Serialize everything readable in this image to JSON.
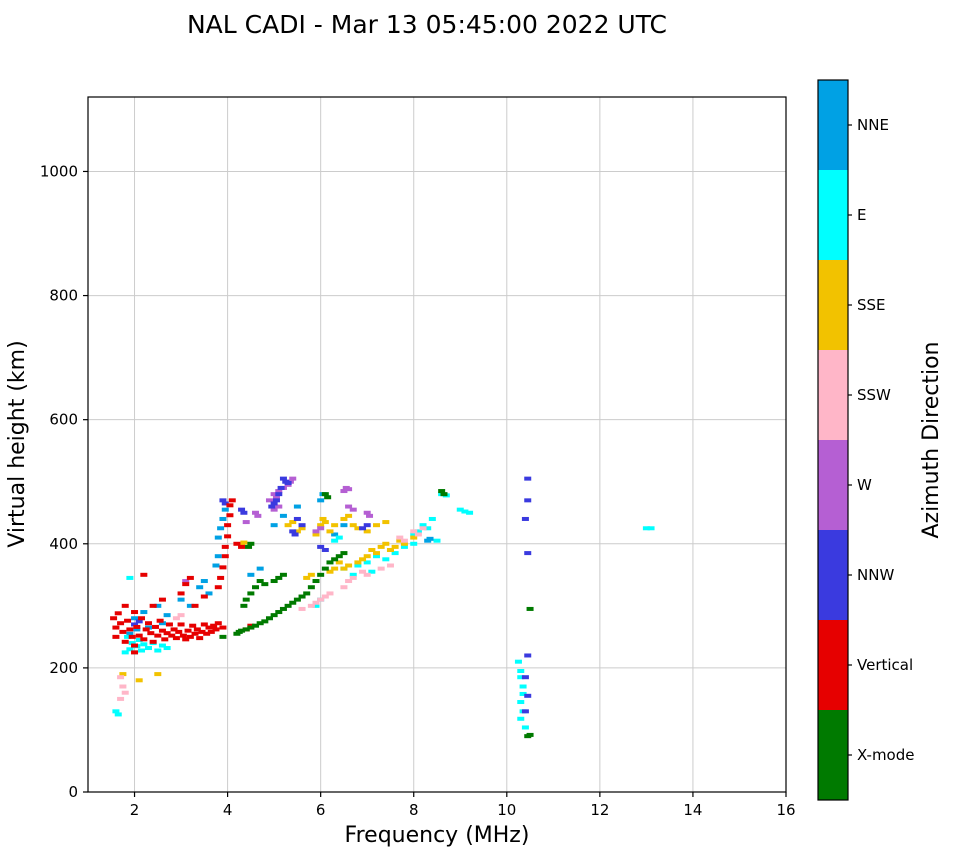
{
  "chart_data": {
    "type": "scatter",
    "title": "NAL CADI - Mar 13 05:45:00 2022 UTC",
    "xlabel": "Frequency (MHz)",
    "ylabel": "Virtual height (km)",
    "colorbar_title": "Azimuth Direction",
    "xlim": [
      1,
      16
    ],
    "ylim": [
      0,
      1120
    ],
    "xticks": [
      2,
      4,
      6,
      8,
      10,
      12,
      14,
      16
    ],
    "yticks": [
      0,
      200,
      400,
      600,
      800,
      1000
    ],
    "grid": true,
    "legend_position": "right-colorbar",
    "series": [
      {
        "name": "NNE",
        "color": "#00A1E4",
        "points": [
          [
            1.9,
            255
          ],
          [
            2.0,
            280
          ],
          [
            2.05,
            262
          ],
          [
            2.2,
            290
          ],
          [
            2.3,
            265
          ],
          [
            2.5,
            300
          ],
          [
            2.6,
            272
          ],
          [
            2.7,
            285
          ],
          [
            3.0,
            310
          ],
          [
            3.2,
            300
          ],
          [
            3.4,
            330
          ],
          [
            3.5,
            340
          ],
          [
            3.6,
            320
          ],
          [
            3.75,
            365
          ],
          [
            3.8,
            380
          ],
          [
            3.8,
            410
          ],
          [
            3.85,
            425
          ],
          [
            3.9,
            440
          ],
          [
            3.95,
            455
          ],
          [
            4.5,
            350
          ],
          [
            4.7,
            360
          ],
          [
            5.0,
            430
          ],
          [
            5.2,
            445
          ],
          [
            5.5,
            460
          ],
          [
            6.0,
            470
          ],
          [
            6.05,
            480
          ],
          [
            6.3,
            415
          ],
          [
            6.5,
            430
          ],
          [
            8.3,
            405
          ],
          [
            8.35,
            408
          ]
        ]
      },
      {
        "name": "E",
        "color": "#00FFFF",
        "points": [
          [
            1.6,
            130
          ],
          [
            1.65,
            125
          ],
          [
            1.8,
            225
          ],
          [
            1.85,
            250
          ],
          [
            1.9,
            345
          ],
          [
            1.9,
            230
          ],
          [
            1.95,
            240
          ],
          [
            2.0,
            225
          ],
          [
            2.05,
            235
          ],
          [
            2.1,
            245
          ],
          [
            2.15,
            228
          ],
          [
            2.2,
            238
          ],
          [
            2.3,
            232
          ],
          [
            2.4,
            240
          ],
          [
            2.5,
            228
          ],
          [
            2.6,
            236
          ],
          [
            2.7,
            232
          ],
          [
            5.9,
            300
          ],
          [
            6.0,
            310
          ],
          [
            6.3,
            405
          ],
          [
            6.4,
            410
          ],
          [
            6.5,
            360
          ],
          [
            6.7,
            350
          ],
          [
            6.8,
            365
          ],
          [
            7.0,
            370
          ],
          [
            7.1,
            355
          ],
          [
            7.2,
            380
          ],
          [
            7.4,
            375
          ],
          [
            7.5,
            390
          ],
          [
            7.6,
            385
          ],
          [
            7.8,
            395
          ],
          [
            8.0,
            400
          ],
          [
            8.0,
            415
          ],
          [
            8.1,
            420
          ],
          [
            8.2,
            430
          ],
          [
            8.3,
            425
          ],
          [
            8.4,
            440
          ],
          [
            8.5,
            405
          ],
          [
            8.6,
            480
          ],
          [
            8.7,
            478
          ],
          [
            9.0,
            455
          ],
          [
            9.1,
            452
          ],
          [
            9.2,
            450
          ],
          [
            10.25,
            210
          ],
          [
            10.3,
            195
          ],
          [
            10.3,
            185
          ],
          [
            10.35,
            170
          ],
          [
            10.35,
            158
          ],
          [
            10.3,
            145
          ],
          [
            10.35,
            130
          ],
          [
            10.3,
            118
          ],
          [
            10.4,
            104
          ],
          [
            13.0,
            425
          ],
          [
            13.1,
            425
          ]
        ]
      },
      {
        "name": "SSE",
        "color": "#F2C200",
        "points": [
          [
            1.75,
            190
          ],
          [
            2.1,
            180
          ],
          [
            2.5,
            190
          ],
          [
            4.3,
            398
          ],
          [
            4.35,
            402
          ],
          [
            5.3,
            430
          ],
          [
            5.4,
            435
          ],
          [
            5.5,
            420
          ],
          [
            5.6,
            425
          ],
          [
            5.7,
            345
          ],
          [
            5.8,
            350
          ],
          [
            5.9,
            415
          ],
          [
            6.0,
            430
          ],
          [
            6.05,
            440
          ],
          [
            6.1,
            435
          ],
          [
            6.2,
            420
          ],
          [
            6.2,
            355
          ],
          [
            6.3,
            430
          ],
          [
            6.3,
            360
          ],
          [
            6.4,
            370
          ],
          [
            6.5,
            440
          ],
          [
            6.5,
            360
          ],
          [
            6.6,
            445
          ],
          [
            6.6,
            365
          ],
          [
            6.7,
            430
          ],
          [
            6.8,
            425
          ],
          [
            6.8,
            370
          ],
          [
            6.9,
            375
          ],
          [
            7.0,
            420
          ],
          [
            7.0,
            380
          ],
          [
            7.1,
            390
          ],
          [
            7.2,
            430
          ],
          [
            7.2,
            385
          ],
          [
            7.3,
            395
          ],
          [
            7.4,
            435
          ],
          [
            7.4,
            400
          ],
          [
            7.5,
            390
          ],
          [
            7.6,
            395
          ],
          [
            7.7,
            405
          ],
          [
            7.8,
            400
          ],
          [
            8.0,
            410
          ]
        ]
      },
      {
        "name": "SSW",
        "color": "#FFB6C8",
        "points": [
          [
            1.7,
            185
          ],
          [
            1.7,
            150
          ],
          [
            1.75,
            170
          ],
          [
            1.8,
            160
          ],
          [
            2.9,
            280
          ],
          [
            3.0,
            285
          ],
          [
            5.6,
            295
          ],
          [
            5.8,
            300
          ],
          [
            5.9,
            305
          ],
          [
            6.0,
            310
          ],
          [
            6.1,
            315
          ],
          [
            6.2,
            320
          ],
          [
            6.5,
            330
          ],
          [
            6.6,
            340
          ],
          [
            6.7,
            345
          ],
          [
            6.9,
            355
          ],
          [
            7.0,
            350
          ],
          [
            7.3,
            360
          ],
          [
            7.5,
            365
          ],
          [
            7.7,
            410
          ],
          [
            7.8,
            405
          ],
          [
            8.0,
            420
          ],
          [
            8.1,
            415
          ],
          [
            8.2,
            425
          ]
        ]
      },
      {
        "name": "W",
        "color": "#B55FD3",
        "points": [
          [
            3.1,
            340
          ],
          [
            4.4,
            435
          ],
          [
            4.6,
            450
          ],
          [
            4.65,
            445
          ],
          [
            4.9,
            470
          ],
          [
            5.0,
            480
          ],
          [
            5.0,
            455
          ],
          [
            5.05,
            475
          ],
          [
            5.1,
            485
          ],
          [
            5.1,
            460
          ],
          [
            5.2,
            490
          ],
          [
            5.3,
            495
          ],
          [
            5.35,
            500
          ],
          [
            5.4,
            505
          ],
          [
            5.9,
            420
          ],
          [
            6.0,
            425
          ],
          [
            6.5,
            485
          ],
          [
            6.55,
            490
          ],
          [
            6.6,
            488
          ],
          [
            6.6,
            460
          ],
          [
            6.7,
            455
          ],
          [
            7.0,
            450
          ],
          [
            7.05,
            445
          ]
        ]
      },
      {
        "name": "NNW",
        "color": "#3A3ADF",
        "points": [
          [
            2.0,
            270
          ],
          [
            2.1,
            275
          ],
          [
            3.9,
            470
          ],
          [
            3.95,
            465
          ],
          [
            4.3,
            455
          ],
          [
            4.35,
            450
          ],
          [
            4.95,
            460
          ],
          [
            5.0,
            465
          ],
          [
            5.05,
            470
          ],
          [
            5.1,
            480
          ],
          [
            5.15,
            490
          ],
          [
            5.2,
            505
          ],
          [
            5.25,
            500
          ],
          [
            5.3,
            498
          ],
          [
            5.4,
            420
          ],
          [
            5.45,
            415
          ],
          [
            5.5,
            440
          ],
          [
            5.6,
            430
          ],
          [
            6.0,
            395
          ],
          [
            6.1,
            390
          ],
          [
            6.9,
            425
          ],
          [
            7.0,
            430
          ],
          [
            10.4,
            130
          ],
          [
            10.4,
            185
          ],
          [
            10.45,
            155
          ],
          [
            10.45,
            220
          ],
          [
            10.45,
            385
          ],
          [
            10.4,
            440
          ],
          [
            10.45,
            470
          ],
          [
            10.45,
            505
          ]
        ]
      },
      {
        "name": "Vertical",
        "color": "#E60000",
        "points": [
          [
            1.55,
            280
          ],
          [
            1.6,
            265
          ],
          [
            1.6,
            250
          ],
          [
            1.65,
            288
          ],
          [
            1.7,
            272
          ],
          [
            1.75,
            258
          ],
          [
            1.8,
            300
          ],
          [
            1.8,
            242
          ],
          [
            1.85,
            276
          ],
          [
            1.9,
            262
          ],
          [
            1.95,
            250
          ],
          [
            2.0,
            290
          ],
          [
            2.0,
            236
          ],
          [
            2.0,
            225
          ],
          [
            2.05,
            266
          ],
          [
            2.1,
            252
          ],
          [
            2.15,
            280
          ],
          [
            2.2,
            246
          ],
          [
            2.2,
            350
          ],
          [
            2.25,
            262
          ],
          [
            2.3,
            272
          ],
          [
            2.35,
            256
          ],
          [
            2.4,
            300
          ],
          [
            2.4,
            242
          ],
          [
            2.45,
            266
          ],
          [
            2.5,
            252
          ],
          [
            2.55,
            276
          ],
          [
            2.6,
            310
          ],
          [
            2.6,
            260
          ],
          [
            2.65,
            246
          ],
          [
            2.7,
            256
          ],
          [
            2.75,
            270
          ],
          [
            2.8,
            252
          ],
          [
            2.85,
            262
          ],
          [
            2.9,
            248
          ],
          [
            2.95,
            258
          ],
          [
            3.0,
            320
          ],
          [
            3.0,
            270
          ],
          [
            3.05,
            252
          ],
          [
            3.1,
            335
          ],
          [
            3.1,
            246
          ],
          [
            3.15,
            260
          ],
          [
            3.2,
            345
          ],
          [
            3.2,
            250
          ],
          [
            3.25,
            268
          ],
          [
            3.3,
            300
          ],
          [
            3.3,
            255
          ],
          [
            3.35,
            262
          ],
          [
            3.4,
            248
          ],
          [
            3.45,
            258
          ],
          [
            3.5,
            315
          ],
          [
            3.5,
            270
          ],
          [
            3.55,
            255
          ],
          [
            3.6,
            265
          ],
          [
            3.65,
            258
          ],
          [
            3.7,
            268
          ],
          [
            3.75,
            262
          ],
          [
            3.8,
            330
          ],
          [
            3.8,
            272
          ],
          [
            3.85,
            345
          ],
          [
            3.9,
            362
          ],
          [
            3.9,
            265
          ],
          [
            3.95,
            380
          ],
          [
            3.95,
            395
          ],
          [
            4.0,
            412
          ],
          [
            4.0,
            430
          ],
          [
            4.05,
            446
          ],
          [
            4.05,
            462
          ],
          [
            4.1,
            470
          ],
          [
            4.2,
            400
          ],
          [
            4.3,
            395
          ],
          [
            4.4,
            262
          ],
          [
            4.5,
            268
          ]
        ]
      },
      {
        "name": "X-mode",
        "color": "#007A00",
        "points": [
          [
            3.9,
            250
          ],
          [
            4.2,
            255
          ],
          [
            4.25,
            258
          ],
          [
            4.3,
            260
          ],
          [
            4.35,
            300
          ],
          [
            4.4,
            310
          ],
          [
            4.4,
            262
          ],
          [
            4.45,
            395
          ],
          [
            4.5,
            400
          ],
          [
            4.5,
            320
          ],
          [
            4.5,
            265
          ],
          [
            4.6,
            330
          ],
          [
            4.6,
            268
          ],
          [
            4.7,
            340
          ],
          [
            4.7,
            272
          ],
          [
            4.8,
            335
          ],
          [
            4.8,
            275
          ],
          [
            4.9,
            280
          ],
          [
            5.0,
            340
          ],
          [
            5.0,
            285
          ],
          [
            5.1,
            345
          ],
          [
            5.1,
            290
          ],
          [
            5.2,
            350
          ],
          [
            5.2,
            295
          ],
          [
            5.3,
            300
          ],
          [
            5.4,
            305
          ],
          [
            5.5,
            310
          ],
          [
            5.6,
            315
          ],
          [
            5.7,
            320
          ],
          [
            5.8,
            330
          ],
          [
            5.9,
            340
          ],
          [
            6.0,
            350
          ],
          [
            6.1,
            480
          ],
          [
            6.1,
            360
          ],
          [
            6.15,
            475
          ],
          [
            6.2,
            370
          ],
          [
            6.3,
            375
          ],
          [
            6.4,
            380
          ],
          [
            6.5,
            385
          ],
          [
            8.6,
            485
          ],
          [
            8.65,
            480
          ],
          [
            10.45,
            90
          ],
          [
            10.5,
            295
          ],
          [
            10.5,
            92
          ]
        ]
      }
    ]
  }
}
